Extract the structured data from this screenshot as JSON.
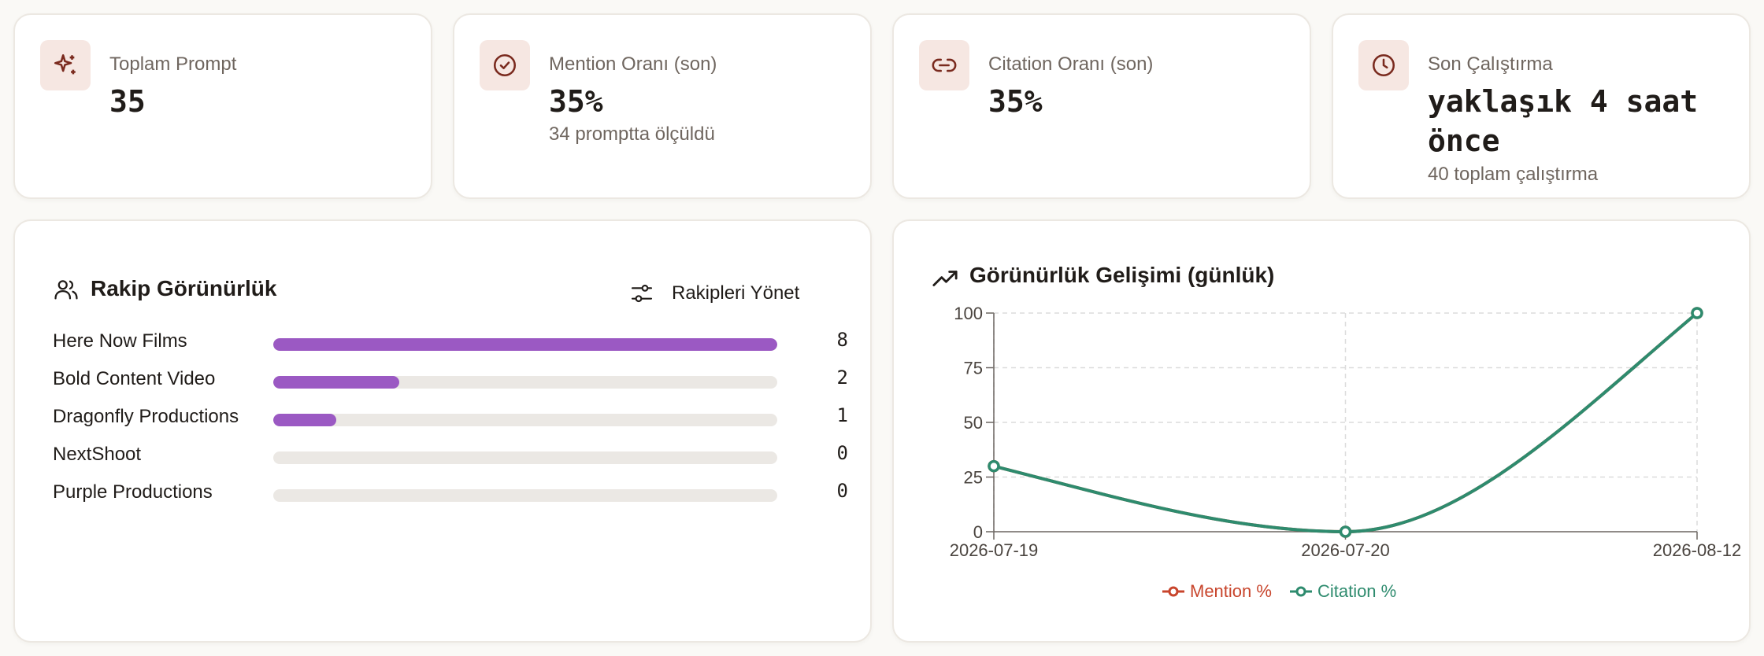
{
  "stats": [
    {
      "label": "Toplam Prompt",
      "value": "35",
      "sub": "",
      "icon": "sparkles-icon"
    },
    {
      "label": "Mention Oranı (son)",
      "value": "35%",
      "sub": "34 promptta ölçüldü",
      "icon": "check-circle-icon"
    },
    {
      "label": "Citation Oranı (son)",
      "value": "35%",
      "sub": "",
      "icon": "link-icon"
    },
    {
      "label": "Son Çalıştırma",
      "value": "yaklaşık 4 saat önce",
      "sub": "40 toplam çalıştırma",
      "icon": "clock-icon"
    }
  ],
  "competitors": {
    "title": "Rakip Görünürlük",
    "manage_label": "Rakipleri Yönet",
    "max": 8,
    "items": [
      {
        "name": "Here Now Films",
        "count": 8
      },
      {
        "name": "Bold Content Video",
        "count": 2
      },
      {
        "name": "Dragonfly Productions",
        "count": 1
      },
      {
        "name": "NextShoot",
        "count": 0
      },
      {
        "name": "Purple Productions",
        "count": 0
      }
    ]
  },
  "chart": {
    "title": "Görünürlük Gelişimi (günlük)"
  },
  "chart_data": {
    "type": "line",
    "categories": [
      "2026-07-19",
      "2026-07-20",
      "2026-08-12"
    ],
    "yticks": [
      0,
      25,
      50,
      75,
      100
    ],
    "ylim": [
      0,
      100
    ],
    "grid": true,
    "legend": "bottom",
    "series": [
      {
        "name": "Mention %",
        "color": "#c8452c",
        "values": [
          30,
          0,
          100
        ]
      },
      {
        "name": "Citation %",
        "color": "#2e8b6e",
        "values": [
          30,
          0,
          100
        ]
      }
    ]
  },
  "colors": {
    "accent_bar": "#9b59c3",
    "icon_bg": "#f6e7e2",
    "icon_fg": "#7a2a1e"
  }
}
